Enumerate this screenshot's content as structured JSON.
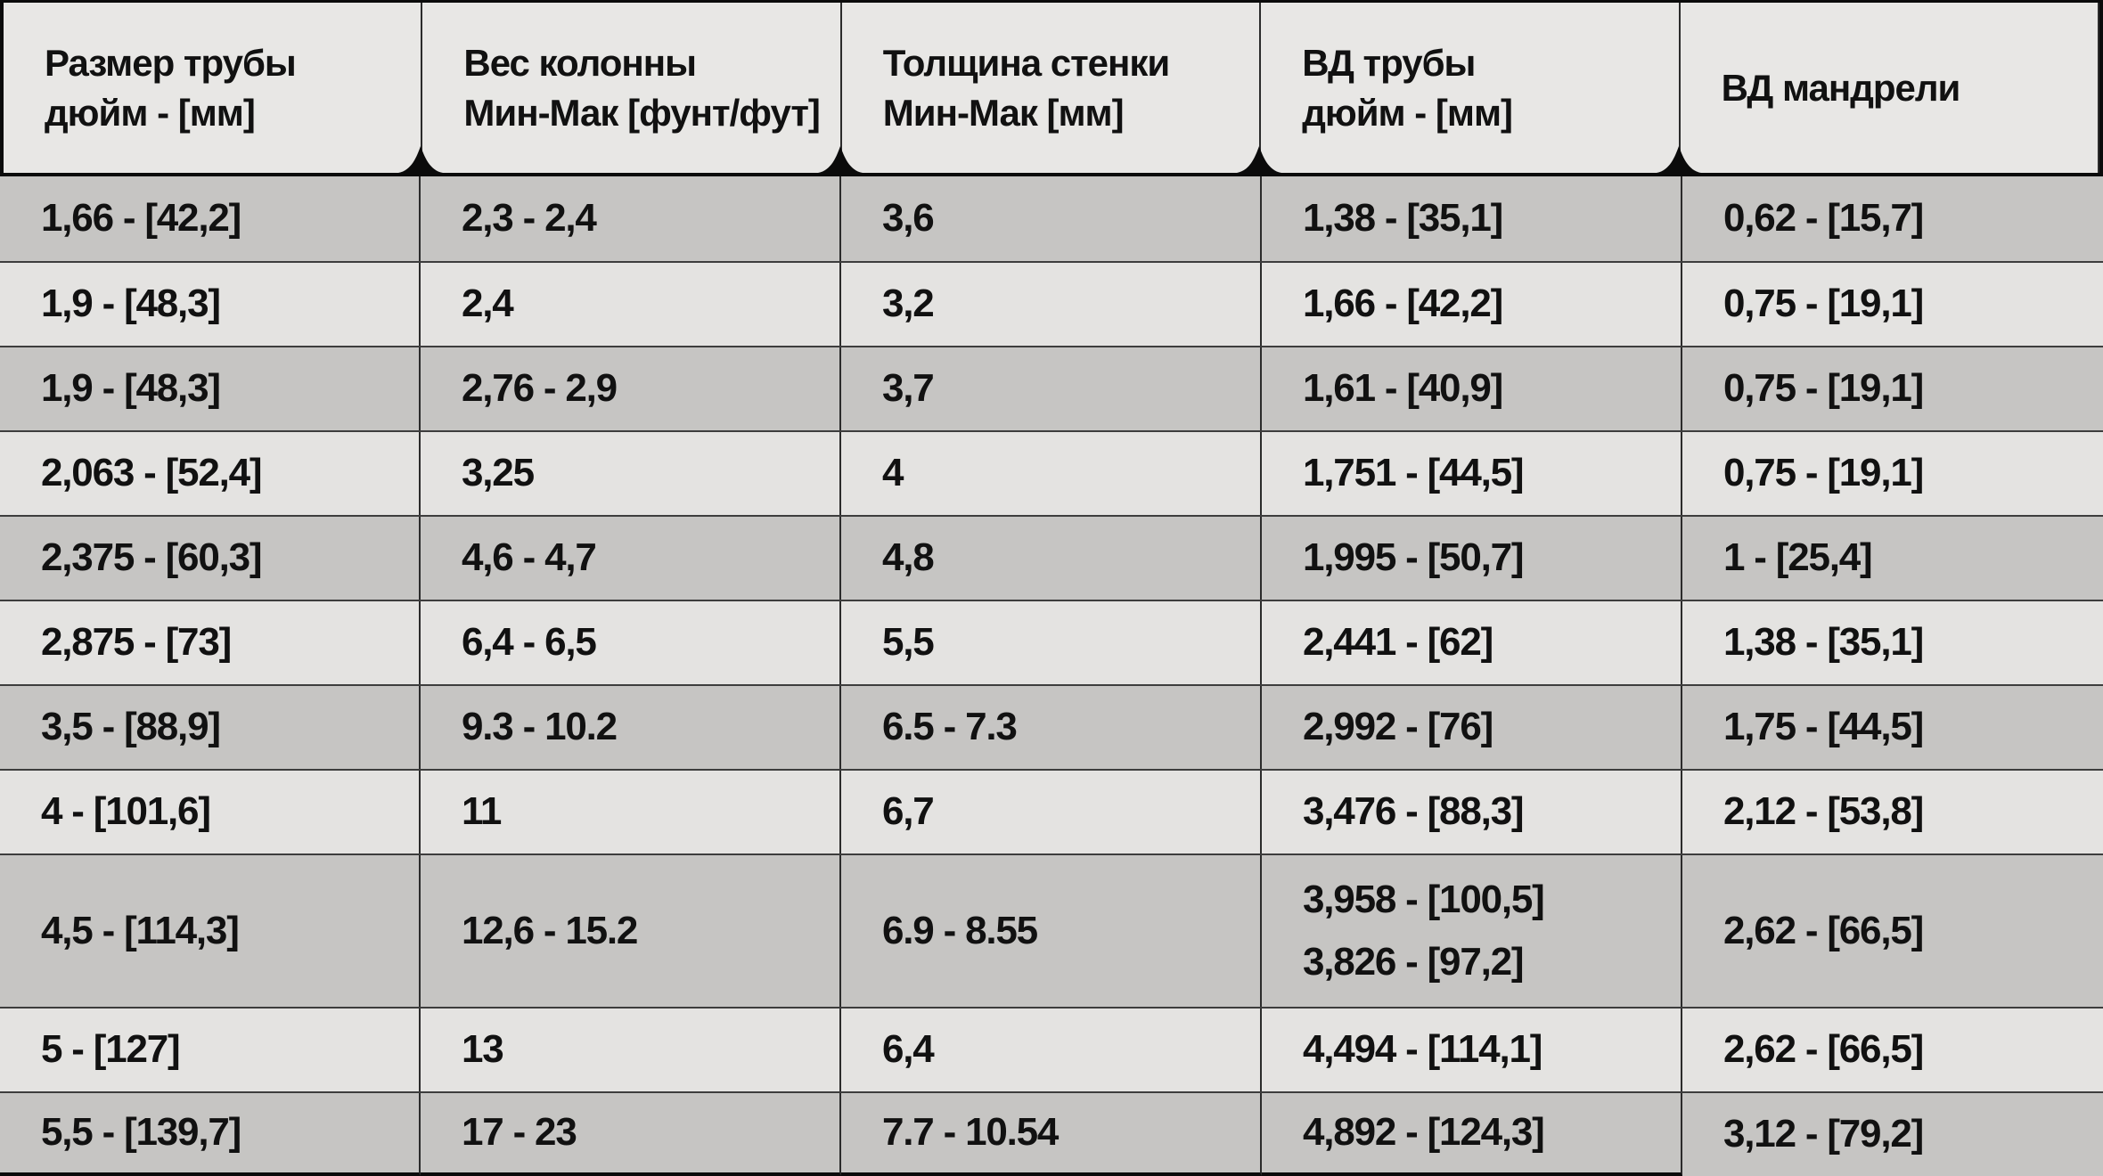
{
  "colors": {
    "header_bg": "#e8e7e5",
    "row_light": "#e4e3e1",
    "row_dark": "#c6c5c3",
    "border_dark": "#0b0b0b",
    "border_row": "#3d3d3d",
    "border_col": "#2b2b2b",
    "text": "#111111",
    "triangle": "#0b0b0b"
  },
  "table": {
    "columns": [
      {
        "label": "Размер трубы\nдюйм - [мм]"
      },
      {
        "label": "Вес колонны\nМин-Мак [фунт/фут]"
      },
      {
        "label": "Толщина стенки\nМин-Мак [мм]"
      },
      {
        "label": "ВД трубы\nдюйм - [мм]"
      },
      {
        "label": "ВД мандрели"
      }
    ],
    "rows": [
      {
        "shade": "dark",
        "tall": false,
        "cells": [
          "1,66 - [42,2]",
          "2,3 - 2,4",
          "3,6",
          "1,38 - [35,1]",
          "0,62 - [15,7]"
        ]
      },
      {
        "shade": "light",
        "tall": false,
        "cells": [
          "1,9 - [48,3]",
          "2,4",
          "3,2",
          "1,66 - [42,2]",
          "0,75 - [19,1]"
        ]
      },
      {
        "shade": "dark",
        "tall": false,
        "cells": [
          "1,9 - [48,3]",
          "2,76 - 2,9",
          "3,7",
          "1,61 - [40,9]",
          "0,75 - [19,1]"
        ]
      },
      {
        "shade": "light",
        "tall": false,
        "cells": [
          "2,063 - [52,4]",
          "3,25",
          "4",
          "1,751 - [44,5]",
          "0,75 - [19,1]"
        ]
      },
      {
        "shade": "dark",
        "tall": false,
        "cells": [
          "2,375 - [60,3]",
          "4,6 - 4,7",
          "4,8",
          "1,995 - [50,7]",
          "1 - [25,4]"
        ]
      },
      {
        "shade": "light",
        "tall": false,
        "cells": [
          "2,875 - [73]",
          "6,4 - 6,5",
          "5,5",
          "2,441 - [62]",
          "1,38 - [35,1]"
        ]
      },
      {
        "shade": "dark",
        "tall": false,
        "cells": [
          "3,5 - [88,9]",
          "9.3 - 10.2",
          "6.5 - 7.3",
          "2,992 - [76]",
          "1,75 - [44,5]"
        ]
      },
      {
        "shade": "light",
        "tall": false,
        "cells": [
          "4 - [101,6]",
          "11",
          "6,7",
          "3,476 - [88,3]",
          "2,12 - [53,8]"
        ]
      },
      {
        "shade": "dark",
        "tall": true,
        "cells": [
          "4,5 - [114,3]",
          "12,6 - 15.2",
          "6.9 - 8.55",
          "3,958 - [100,5]\n3,826 - [97,2]",
          "2,62 - [66,5]"
        ]
      },
      {
        "shade": "light",
        "tall": false,
        "cells": [
          "5 - [127]",
          "13",
          "6,4",
          "4,494 - [114,1]",
          "2,62 - [66,5]"
        ]
      },
      {
        "shade": "dark",
        "tall": false,
        "cells": [
          "5,5 - [139,7]",
          "17 - 23",
          "7.7 - 10.54",
          "4,892 - [124,3]",
          "3,12 - [79,2]"
        ]
      }
    ]
  }
}
